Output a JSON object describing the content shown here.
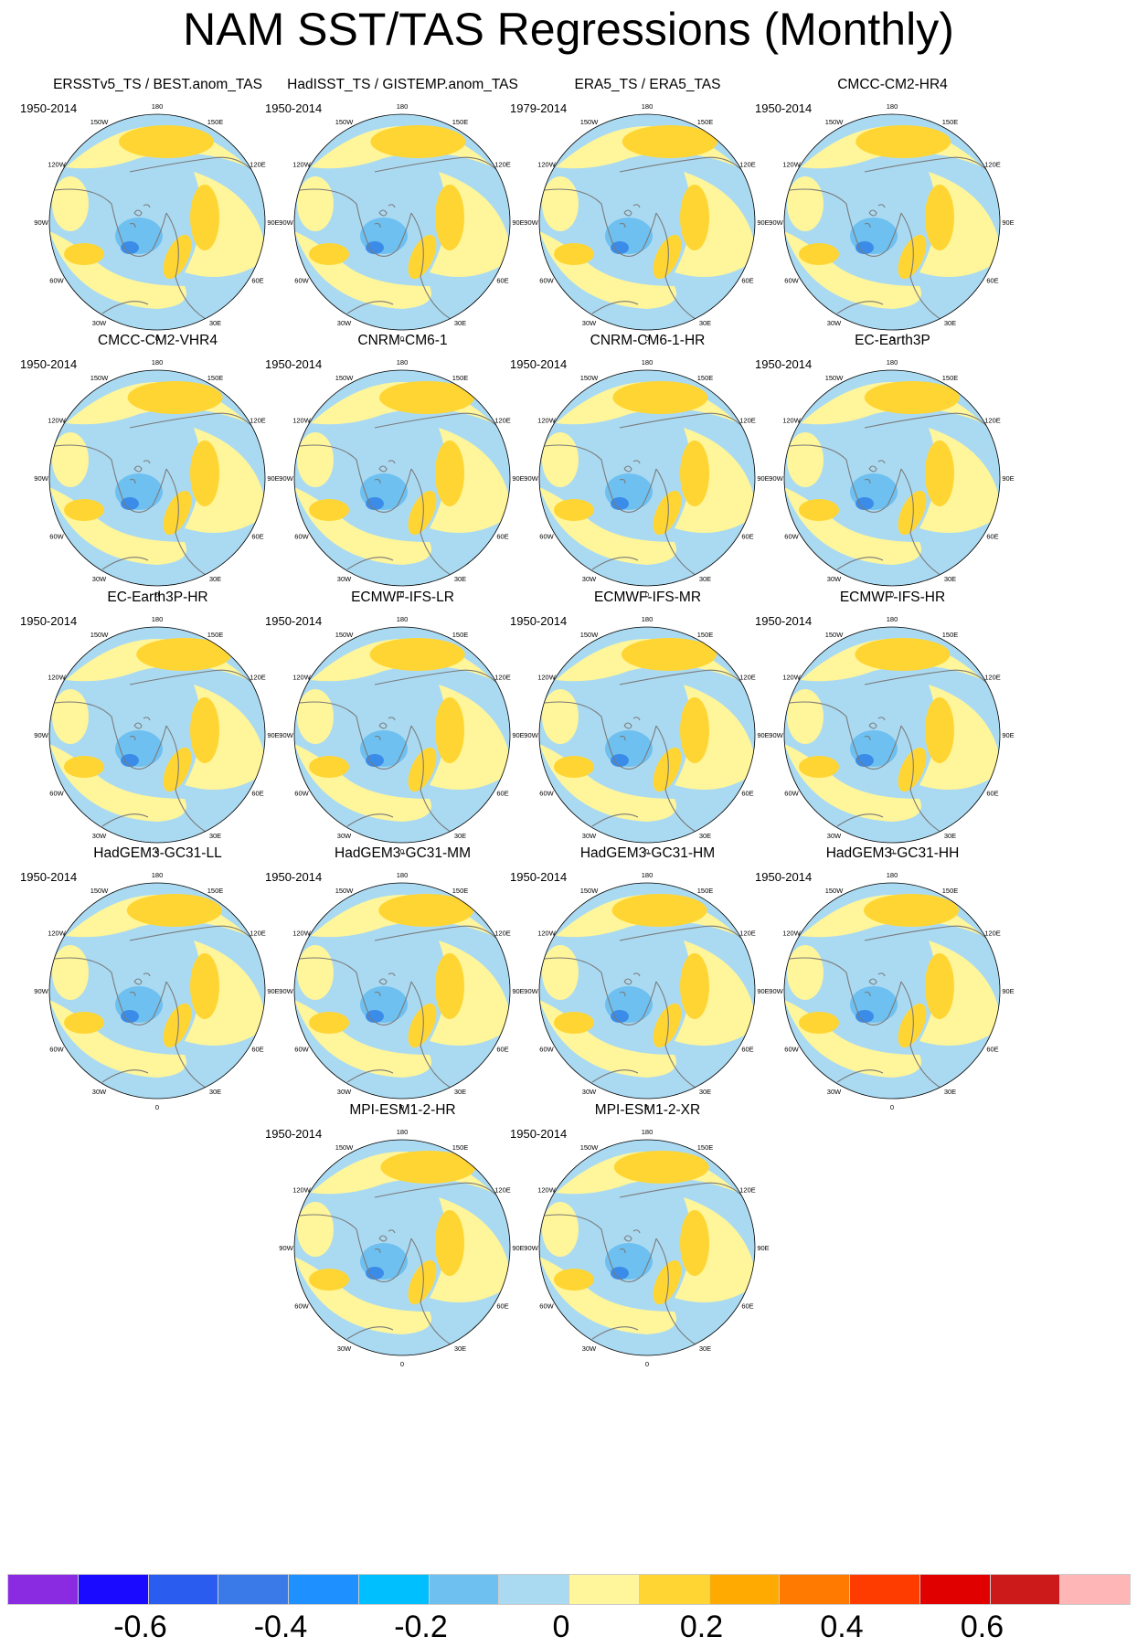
{
  "title": "NAM SST/TAS Regressions (Monthly)",
  "colors": {
    "negative_light": "#aadaf2",
    "positive_light": "#fff59a",
    "positive_mid": "#ffd534",
    "positive_strong": "#ffaa00",
    "negative_mid": "#6ec0f0",
    "negative_strong": "#3a8ce8",
    "coast": "#7a7a7a"
  },
  "longitude_labels": [
    "180",
    "150E",
    "120E",
    "90E",
    "60E",
    "30E",
    "0",
    "30W",
    "60W",
    "90W",
    "120W",
    "150W"
  ],
  "panels": [
    {
      "title": "ERSSTv5_TS / BEST.anom_TAS",
      "period": "1950-2014"
    },
    {
      "title": "HadISST_TS / GISTEMP.anom_TAS",
      "period": "1950-2014"
    },
    {
      "title": "ERA5_TS / ERA5_TAS",
      "period": "1979-2014"
    },
    {
      "title": "CMCC-CM2-HR4",
      "period": "1950-2014"
    },
    {
      "title": "CMCC-CM2-VHR4",
      "period": "1950-2014"
    },
    {
      "title": "CNRM-CM6-1",
      "period": "1950-2014"
    },
    {
      "title": "CNRM-CM6-1-HR",
      "period": "1950-2014"
    },
    {
      "title": "EC-Earth3P",
      "period": "1950-2014"
    },
    {
      "title": "EC-Earth3P-HR",
      "period": "1950-2014"
    },
    {
      "title": "ECMWF-IFS-LR",
      "period": "1950-2014"
    },
    {
      "title": "ECMWF-IFS-MR",
      "period": "1950-2014"
    },
    {
      "title": "ECMWF-IFS-HR",
      "period": "1950-2014"
    },
    {
      "title": "HadGEM3-GC31-LL",
      "period": "1950-2014"
    },
    {
      "title": "HadGEM3-GC31-MM",
      "period": "1950-2014"
    },
    {
      "title": "HadGEM3-GC31-HM",
      "period": "1950-2014"
    },
    {
      "title": "HadGEM3-GC31-HH",
      "period": "1950-2014"
    },
    {
      "title": "MPI-ESM1-2-HR",
      "period": "1950-2014"
    },
    {
      "title": "MPI-ESM1-2-XR",
      "period": "1950-2014"
    }
  ],
  "colorbar": {
    "colors": [
      "#8a2be2",
      "#1a0aff",
      "#2b5cf0",
      "#3a7ae8",
      "#1e90ff",
      "#00bfff",
      "#6ec0f0",
      "#aadaf2",
      "#fff59a",
      "#ffd534",
      "#ffaa00",
      "#ff7a00",
      "#ff3c00",
      "#e00000",
      "#cc1a1a",
      "#ffb6b6"
    ],
    "labels": [
      "-0.6",
      "-0.4",
      "-0.2",
      "0",
      "0.2",
      "0.4",
      "0.6"
    ],
    "label_positions": [
      2,
      4,
      6,
      8,
      10,
      12,
      14
    ]
  }
}
